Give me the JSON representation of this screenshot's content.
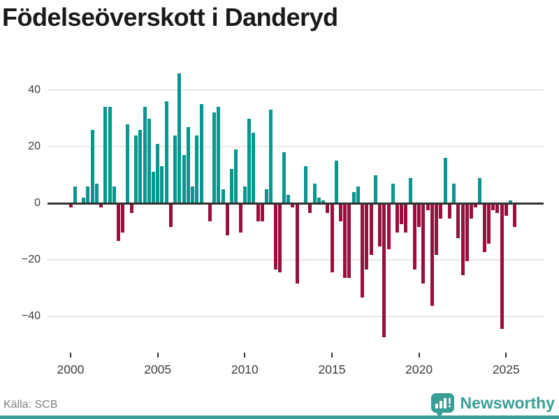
{
  "title": "Födelseöverskott i Danderyd",
  "footer": {
    "source": "Källa: SCB",
    "brand": "Newsworthy"
  },
  "colors": {
    "positive": "#08968f",
    "negative": "#990f3d",
    "brand": "#3a9e96",
    "grid": "#e8e8e8",
    "zero_line": "#333333",
    "axis_text": "#3d3d3d",
    "source_text": "#828282",
    "title_text": "#191919"
  },
  "chart_data": {
    "type": "bar",
    "title": "Födelseöverskott i Danderyd",
    "frequency": "quarterly",
    "start": "2000 Q1",
    "end": "2025 Q3",
    "x_tick_labels": [
      "2000",
      "2005",
      "2010",
      "2015",
      "2020",
      "2025"
    ],
    "y_tick_values": [
      40,
      20,
      0,
      -20,
      -40
    ],
    "ylim": [
      -50,
      50
    ],
    "grid": true,
    "legend": false,
    "series": [
      {
        "values": [
          -1,
          6,
          0,
          2,
          6,
          26,
          7,
          -1,
          34,
          34,
          6,
          -13,
          -10,
          28,
          -3,
          24,
          26,
          34,
          30,
          11,
          21,
          13,
          36,
          -8,
          24,
          46,
          17,
          27,
          6,
          24,
          35,
          0,
          -6,
          32,
          34,
          5,
          -11,
          12,
          19,
          -10,
          6,
          30,
          25,
          -6,
          -6,
          5,
          33,
          -23,
          -24,
          18,
          3,
          -1,
          -28,
          0,
          13,
          -3,
          7,
          2,
          1,
          -3,
          -24,
          15,
          -6,
          -26,
          -26,
          4,
          6,
          -33,
          -23,
          -18,
          10,
          -15,
          -47,
          -16,
          7,
          -10,
          -7,
          -10,
          9,
          -23,
          -8,
          -28,
          -2,
          -36,
          -18,
          -5,
          16,
          -5,
          7,
          -12,
          -25,
          -20,
          -5,
          -1,
          9,
          -17,
          -14,
          -2,
          -3,
          -44,
          -4,
          1,
          -8
        ]
      }
    ]
  }
}
